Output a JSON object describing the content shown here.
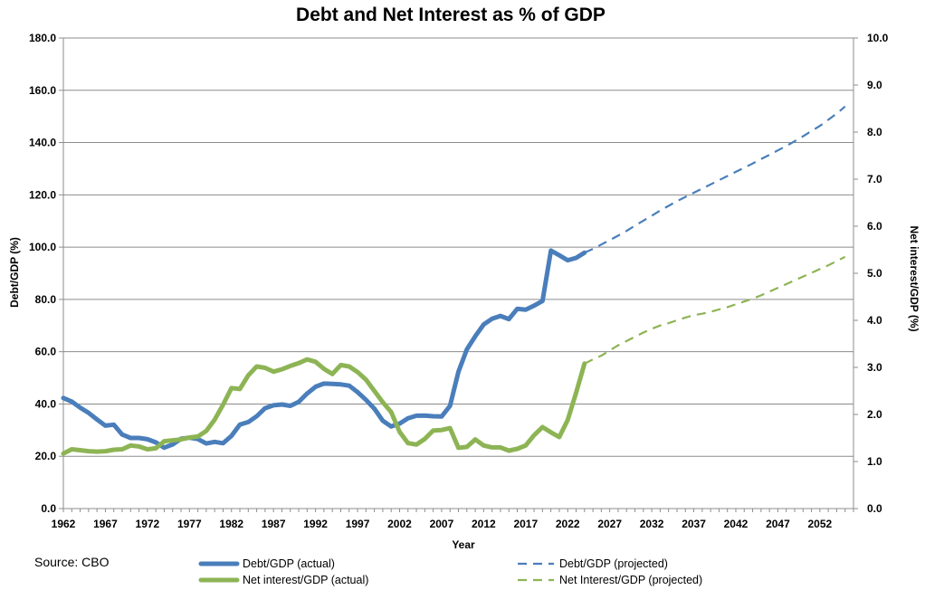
{
  "chart_data": {
    "type": "line",
    "title": "Debt and Net Interest as % of GDP",
    "xlabel": "Year",
    "ylabel_left": "Debt/GDP (%)",
    "ylabel_right": "Net interest/GDP  (%)",
    "source": "Source: CBO",
    "xlim": [
      1962,
      2056
    ],
    "ylim_left": [
      0,
      180
    ],
    "ylim_right": [
      0,
      10
    ],
    "x_ticks": [
      "1962",
      "1967",
      "1972",
      "1977",
      "1982",
      "1987",
      "1992",
      "1997",
      "2002",
      "2007",
      "2012",
      "2017",
      "2022",
      "2027",
      "2032",
      "2037",
      "2042",
      "2047",
      "2052"
    ],
    "y_ticks_left": [
      "0.0",
      "20.0",
      "40.0",
      "60.0",
      "80.0",
      "100.0",
      "120.0",
      "140.0",
      "160.0",
      "180.0"
    ],
    "y_ticks_right": [
      "0.0",
      "1.0",
      "2.0",
      "3.0",
      "4.0",
      "5.0",
      "6.0",
      "7.0",
      "8.0",
      "9.0",
      "10.0"
    ],
    "grid": true,
    "colors": {
      "debt": "#4a7ebb",
      "interest": "#8db454"
    },
    "series": [
      {
        "name": "Debt/GDP (actual)",
        "axis": "left",
        "style": "solid",
        "color_key": "debt",
        "x": [
          1962,
          1963,
          1964,
          1965,
          1966,
          1967,
          1968,
          1969,
          1970,
          1971,
          1972,
          1973,
          1974,
          1975,
          1976,
          1977,
          1978,
          1979,
          1980,
          1981,
          1982,
          1983,
          1984,
          1985,
          1986,
          1987,
          1988,
          1989,
          1990,
          1991,
          1992,
          1993,
          1994,
          1995,
          1996,
          1997,
          1998,
          1999,
          2000,
          2001,
          2002,
          2003,
          2004,
          2005,
          2006,
          2007,
          2008,
          2009,
          2010,
          2011,
          2012,
          2013,
          2014,
          2015,
          2016,
          2017,
          2018,
          2019,
          2020,
          2021,
          2022,
          2023,
          2024
        ],
        "values": [
          42.3,
          40.9,
          38.6,
          36.6,
          34.1,
          31.7,
          32.1,
          28.3,
          27.0,
          27.0,
          26.5,
          25.3,
          23.3,
          24.5,
          26.7,
          27.1,
          26.6,
          24.9,
          25.5,
          25.0,
          27.8,
          32.1,
          33.1,
          35.3,
          38.4,
          39.5,
          39.8,
          39.3,
          40.8,
          44.0,
          46.6,
          47.8,
          47.7,
          47.5,
          47.0,
          44.5,
          41.6,
          38.2,
          33.6,
          31.4,
          32.5,
          34.5,
          35.5,
          35.6,
          35.3,
          35.2,
          39.3,
          52.3,
          60.9,
          65.9,
          70.4,
          72.6,
          73.7,
          72.5,
          76.4,
          76.1,
          77.6,
          79.4,
          98.7,
          96.9,
          95.0,
          95.9,
          97.9
        ]
      },
      {
        "name": "Net interest/GDP (actual)",
        "axis": "right",
        "style": "solid",
        "color_key": "interest",
        "x": [
          1962,
          1963,
          1964,
          1965,
          1966,
          1967,
          1968,
          1969,
          1970,
          1971,
          1972,
          1973,
          1974,
          1975,
          1976,
          1977,
          1978,
          1979,
          1980,
          1981,
          1982,
          1983,
          1984,
          1985,
          1986,
          1987,
          1988,
          1989,
          1990,
          1991,
          1992,
          1993,
          1994,
          1995,
          1996,
          1997,
          1998,
          1999,
          2000,
          2001,
          2002,
          2003,
          2004,
          2005,
          2006,
          2007,
          2008,
          2009,
          2010,
          2011,
          2012,
          2013,
          2014,
          2015,
          2016,
          2017,
          2018,
          2019,
          2020,
          2021,
          2022,
          2023,
          2024
        ],
        "values": [
          1.17,
          1.26,
          1.24,
          1.22,
          1.21,
          1.22,
          1.25,
          1.26,
          1.34,
          1.32,
          1.26,
          1.28,
          1.43,
          1.45,
          1.47,
          1.51,
          1.53,
          1.65,
          1.89,
          2.21,
          2.56,
          2.54,
          2.83,
          3.02,
          2.99,
          2.91,
          2.96,
          3.03,
          3.09,
          3.17,
          3.12,
          2.97,
          2.86,
          3.05,
          3.02,
          2.9,
          2.74,
          2.5,
          2.26,
          2.05,
          1.63,
          1.39,
          1.36,
          1.48,
          1.66,
          1.67,
          1.71,
          1.29,
          1.31,
          1.47,
          1.34,
          1.3,
          1.3,
          1.23,
          1.27,
          1.34,
          1.56,
          1.73,
          1.62,
          1.52,
          1.88,
          2.46,
          3.08
        ]
      },
      {
        "name": "Debt/GDP (projected)",
        "axis": "left",
        "style": "dashed",
        "color_key": "debt",
        "x": [
          2024,
          2025,
          2026,
          2027,
          2028,
          2029,
          2030,
          2031,
          2032,
          2033,
          2034,
          2035,
          2036,
          2037,
          2038,
          2039,
          2040,
          2041,
          2042,
          2043,
          2044,
          2045,
          2046,
          2047,
          2048,
          2049,
          2050,
          2051,
          2052,
          2053,
          2054,
          2055
        ],
        "values": [
          97.9,
          99.3,
          101.0,
          102.7,
          104.4,
          106.2,
          108.2,
          110.1,
          112.0,
          114.0,
          115.8,
          117.6,
          119.2,
          120.8,
          122.4,
          124.0,
          125.6,
          127.2,
          128.8,
          130.4,
          132.0,
          133.7,
          135.3,
          137.0,
          138.7,
          140.5,
          142.4,
          144.4,
          146.4,
          148.7,
          151.1,
          153.8
        ]
      },
      {
        "name": "Net Interest/GDP (projected)",
        "axis": "right",
        "style": "dashed",
        "color_key": "interest",
        "x": [
          2024,
          2025,
          2026,
          2027,
          2028,
          2029,
          2030,
          2031,
          2032,
          2033,
          2034,
          2035,
          2036,
          2037,
          2038,
          2039,
          2040,
          2041,
          2042,
          2043,
          2044,
          2045,
          2046,
          2047,
          2048,
          2049,
          2050,
          2051,
          2052,
          2053,
          2054,
          2055
        ],
        "values": [
          3.08,
          3.17,
          3.25,
          3.36,
          3.47,
          3.56,
          3.65,
          3.74,
          3.82,
          3.89,
          3.94,
          4.0,
          4.06,
          4.11,
          4.14,
          4.18,
          4.23,
          4.28,
          4.34,
          4.4,
          4.46,
          4.53,
          4.61,
          4.69,
          4.77,
          4.85,
          4.93,
          5.01,
          5.09,
          5.17,
          5.26,
          5.35
        ]
      }
    ],
    "legend": [
      {
        "label": "Debt/GDP (actual)",
        "series": 0
      },
      {
        "label": "Debt/GDP (projected)",
        "series": 2
      },
      {
        "label": "Net interest/GDP (actual)",
        "series": 1
      },
      {
        "label": "Net Interest/GDP (projected)",
        "series": 3
      }
    ]
  }
}
